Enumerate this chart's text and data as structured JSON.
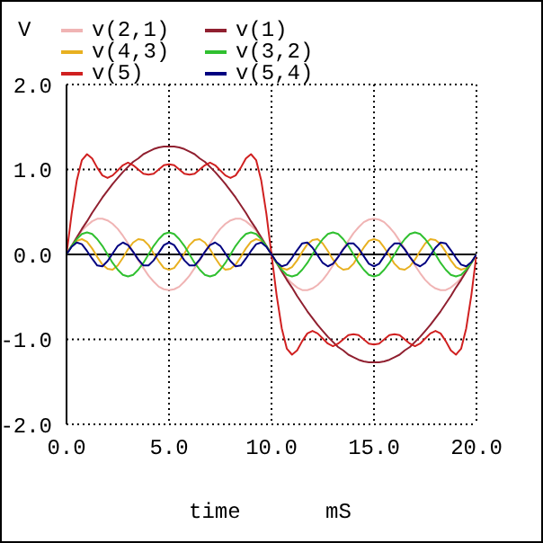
{
  "chart_data": {
    "type": "line",
    "ylabel": "V",
    "xlabel": "time",
    "annotations": [
      "mS"
    ],
    "legend": "top",
    "grid": true,
    "xlim": [
      0,
      20
    ],
    "xticks": [
      {
        "value": 0,
        "label": "0.0"
      },
      {
        "value": 5,
        "label": "5.0"
      },
      {
        "value": 10,
        "label": "10.0"
      },
      {
        "value": 15,
        "label": "15.0"
      },
      {
        "value": 20,
        "label": "20.0"
      }
    ],
    "ylim": [
      -2,
      2
    ],
    "yticks": [
      {
        "value": -2,
        "label": "-2.0"
      },
      {
        "value": -1,
        "label": "-1.0"
      },
      {
        "value": 0,
        "label": "0.0"
      },
      {
        "value": 1,
        "label": "1.0"
      },
      {
        "value": 2,
        "label": "2.0"
      }
    ],
    "ref_lines": [
      {
        "axis": "y",
        "value": 0,
        "color": "#000000"
      }
    ],
    "x": [
      0,
      0.25,
      0.5,
      0.75,
      1,
      1.25,
      1.5,
      1.75,
      2,
      2.25,
      2.5,
      2.75,
      3,
      3.25,
      3.5,
      3.75,
      4,
      4.25,
      4.5,
      4.75,
      5,
      5.25,
      5.5,
      5.75,
      6,
      6.25,
      6.5,
      6.75,
      7,
      7.25,
      7.5,
      7.75,
      8,
      8.25,
      8.5,
      8.75,
      9,
      9.25,
      9.5,
      9.75,
      10,
      10.25,
      10.5,
      10.75,
      11,
      11.25,
      11.5,
      11.75,
      12,
      12.25,
      12.5,
      12.75,
      13,
      13.25,
      13.5,
      13.75,
      14,
      14.25,
      14.5,
      14.75,
      15,
      15.25,
      15.5,
      15.75,
      16,
      16.25,
      16.5,
      16.75,
      17,
      17.25,
      17.5,
      17.75,
      18,
      18.25,
      18.5,
      18.75,
      19,
      19.25,
      19.5,
      19.75,
      20
    ],
    "series": [
      {
        "name": "v(2,1)",
        "color": "#f0b4b4",
        "values": [
          0,
          0.1,
          0.19,
          0.28,
          0.34,
          0.39,
          0.42,
          0.42,
          0.4,
          0.36,
          0.3,
          0.22,
          0.13,
          0.03,
          -0.07,
          -0.16,
          -0.25,
          -0.32,
          -0.38,
          -0.41,
          -0.42,
          -0.41,
          -0.38,
          -0.32,
          -0.25,
          -0.16,
          -0.07,
          0.03,
          0.13,
          0.22,
          0.3,
          0.36,
          0.4,
          0.42,
          0.42,
          0.39,
          0.34,
          0.28,
          0.19,
          0.1,
          0,
          -0.1,
          -0.19,
          -0.28,
          -0.34,
          -0.39,
          -0.42,
          -0.42,
          -0.4,
          -0.36,
          -0.3,
          -0.22,
          -0.13,
          -0.03,
          0.07,
          0.16,
          0.25,
          0.32,
          0.38,
          0.41,
          0.42,
          0.41,
          0.38,
          0.32,
          0.25,
          0.16,
          0.07,
          -0.03,
          -0.13,
          -0.22,
          -0.3,
          -0.36,
          -0.4,
          -0.42,
          -0.42,
          -0.39,
          -0.34,
          -0.28,
          -0.19,
          -0.1,
          0
        ]
      },
      {
        "name": "v(1)",
        "color": "#902030",
        "values": [
          0,
          0.1,
          0.2,
          0.3,
          0.39,
          0.49,
          0.58,
          0.67,
          0.75,
          0.83,
          0.9,
          0.97,
          1.03,
          1.09,
          1.13,
          1.18,
          1.21,
          1.24,
          1.26,
          1.27,
          1.27,
          1.27,
          1.26,
          1.24,
          1.21,
          1.18,
          1.13,
          1.09,
          1.03,
          0.97,
          0.9,
          0.83,
          0.75,
          0.67,
          0.58,
          0.49,
          0.39,
          0.3,
          0.2,
          0.1,
          0,
          -0.1,
          -0.2,
          -0.3,
          -0.39,
          -0.49,
          -0.58,
          -0.67,
          -0.75,
          -0.83,
          -0.9,
          -0.97,
          -1.03,
          -1.09,
          -1.13,
          -1.18,
          -1.21,
          -1.24,
          -1.26,
          -1.27,
          -1.27,
          -1.27,
          -1.26,
          -1.24,
          -1.21,
          -1.18,
          -1.13,
          -1.09,
          -1.03,
          -0.97,
          -0.9,
          -0.83,
          -0.75,
          -0.67,
          -0.58,
          -0.49,
          -0.39,
          -0.3,
          -0.2,
          -0.1,
          0
        ]
      },
      {
        "name": "v(4,3)",
        "color": "#e8b020",
        "values": [
          0,
          0.1,
          0.16,
          0.18,
          0.15,
          0.07,
          -0.03,
          -0.12,
          -0.17,
          -0.18,
          -0.13,
          -0.04,
          0.06,
          0.14,
          0.18,
          0.17,
          0.11,
          0.01,
          -0.08,
          -0.16,
          -0.18,
          -0.16,
          -0.08,
          0.01,
          0.11,
          0.17,
          0.18,
          0.14,
          0.06,
          -0.04,
          -0.13,
          -0.18,
          -0.17,
          -0.12,
          -0.03,
          0.07,
          0.15,
          0.18,
          0.16,
          0.1,
          0,
          -0.1,
          -0.16,
          -0.18,
          -0.15,
          -0.07,
          0.03,
          0.12,
          0.17,
          0.18,
          0.13,
          0.04,
          -0.06,
          -0.14,
          -0.18,
          -0.17,
          -0.11,
          -0.01,
          0.08,
          0.16,
          0.18,
          0.16,
          0.08,
          -0.01,
          -0.11,
          -0.17,
          -0.18,
          -0.14,
          -0.06,
          0.04,
          0.13,
          0.18,
          0.17,
          0.12,
          0.03,
          -0.07,
          -0.15,
          -0.18,
          -0.16,
          -0.1,
          0
        ]
      },
      {
        "name": "v(3,2)",
        "color": "#30c030",
        "values": [
          0,
          0.1,
          0.18,
          0.24,
          0.26,
          0.24,
          0.18,
          0.1,
          0,
          -0.1,
          -0.18,
          -0.24,
          -0.26,
          -0.24,
          -0.18,
          -0.1,
          0,
          0.1,
          0.18,
          0.24,
          0.26,
          0.24,
          0.18,
          0.1,
          0,
          -0.1,
          -0.18,
          -0.24,
          -0.26,
          -0.24,
          -0.18,
          -0.1,
          0,
          0.1,
          0.18,
          0.24,
          0.26,
          0.24,
          0.18,
          0.1,
          0,
          -0.1,
          -0.18,
          -0.24,
          -0.26,
          -0.24,
          -0.18,
          -0.1,
          0,
          0.1,
          0.18,
          0.24,
          0.26,
          0.24,
          0.18,
          0.1,
          0,
          -0.1,
          -0.18,
          -0.24,
          -0.26,
          -0.24,
          -0.18,
          -0.1,
          0,
          0.1,
          0.18,
          0.24,
          0.26,
          0.24,
          0.18,
          0.1,
          0,
          -0.1,
          -0.18,
          -0.24,
          -0.26,
          -0.24,
          -0.18,
          -0.1,
          0
        ]
      },
      {
        "name": "v(5)",
        "color": "#d02020",
        "values": [
          0,
          0.48,
          0.87,
          1.11,
          1.18,
          1.13,
          1.02,
          0.93,
          0.9,
          0.93,
          0.99,
          1.05,
          1.08,
          1.05,
          1.0,
          0.95,
          0.94,
          0.95,
          1.0,
          1.05,
          1.06,
          1.05,
          1.0,
          0.95,
          0.94,
          0.95,
          1.0,
          1.05,
          1.08,
          1.05,
          0.99,
          0.93,
          0.9,
          0.93,
          1.02,
          1.13,
          1.18,
          1.11,
          0.87,
          0.48,
          0,
          -0.48,
          -0.87,
          -1.11,
          -1.18,
          -1.13,
          -1.02,
          -0.93,
          -0.9,
          -0.93,
          -0.99,
          -1.05,
          -1.08,
          -1.05,
          -1.0,
          -0.95,
          -0.94,
          -0.95,
          -1.0,
          -1.05,
          -1.06,
          -1.05,
          -1.0,
          -0.95,
          -0.94,
          -0.95,
          -1.0,
          -1.05,
          -1.08,
          -1.05,
          -0.99,
          -0.93,
          -0.9,
          -0.93,
          -1.02,
          -1.13,
          -1.18,
          -1.11,
          -0.87,
          -0.48,
          0
        ]
      },
      {
        "name": "v(5,4)",
        "color": "#000080",
        "values": [
          0,
          0.09,
          0.14,
          0.12,
          0.04,
          -0.05,
          -0.13,
          -0.14,
          -0.08,
          0.01,
          0.1,
          0.14,
          0.11,
          0.03,
          -0.06,
          -0.13,
          -0.13,
          -0.07,
          0.02,
          0.11,
          0.14,
          0.11,
          0.02,
          -0.07,
          -0.13,
          -0.13,
          -0.06,
          0.03,
          0.11,
          0.14,
          0.1,
          0.01,
          -0.08,
          -0.14,
          -0.13,
          -0.05,
          0.04,
          0.12,
          0.14,
          0.09,
          0,
          -0.09,
          -0.14,
          -0.12,
          -0.04,
          0.05,
          0.13,
          0.14,
          0.08,
          -0.01,
          -0.1,
          -0.14,
          -0.11,
          -0.03,
          0.06,
          0.13,
          0.13,
          0.07,
          -0.02,
          -0.11,
          -0.14,
          -0.11,
          -0.02,
          0.07,
          0.13,
          0.13,
          0.06,
          -0.03,
          -0.11,
          -0.14,
          -0.1,
          -0.01,
          0.08,
          0.14,
          0.13,
          0.05,
          -0.04,
          -0.12,
          -0.14,
          -0.09,
          0
        ]
      }
    ]
  }
}
